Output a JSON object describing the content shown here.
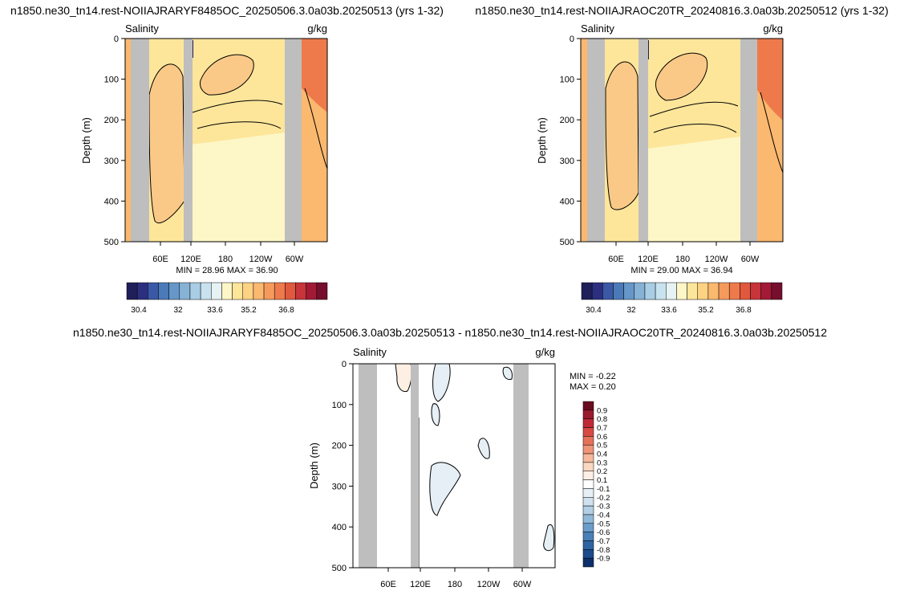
{
  "panels": [
    {
      "title": "n1850.ne30_tn14.rest-NOIIAJRARYF8485OC_20250506.3.0a03b.20250513 (yrs 1-32)",
      "variable": "Salinity",
      "units": "g/kg",
      "ylabel": "Depth (m)",
      "stats": "MIN =  28.96  MAX =  36.90"
    },
    {
      "title": "n1850.ne30_tn14.rest-NOIIAJRAOC20TR_20240816.3.0a03b.20250512 (yrs 1-32)",
      "variable": "Salinity",
      "units": "g/kg",
      "ylabel": "Depth (m)",
      "stats": "MIN =  29.00  MAX =  36.94"
    },
    {
      "title": "n1850.ne30_tn14.rest-NOIIAJRARYF8485OC_20250506.3.0a03b.20250513 - n1850.ne30_tn14.rest-NOIIAJRAOC20TR_20240816.3.0a03b.20250512",
      "variable": "Salinity",
      "units": "g/kg",
      "ylabel": "Depth (m)",
      "stats_min": "MIN =  -0.22",
      "stats_max": "MAX =   0.20"
    }
  ],
  "chart_data": [
    {
      "type": "heatmap",
      "title": "n1850.ne30_tn14.rest-NOIIAJRARYF8485OC_20250506.3.0a03b.20250513 (yrs 1-32)",
      "ylabel": "Depth (m)",
      "ylim": [
        500,
        0
      ],
      "yticks": [
        0,
        100,
        200,
        300,
        400,
        500
      ],
      "xticks": [
        "60E",
        "120E",
        "180",
        "120W",
        "60W"
      ],
      "colorbar_ticks": [
        "30.4",
        "32",
        "33.6",
        "35.2",
        "36.8"
      ],
      "min": 28.96,
      "max": 36.9
    },
    {
      "type": "heatmap",
      "title": "n1850.ne30_tn14.rest-NOIIAJRAOC20TR_20240816.3.0a03b.20250512 (yrs 1-32)",
      "ylabel": "Depth (m)",
      "ylim": [
        500,
        0
      ],
      "yticks": [
        0,
        100,
        200,
        300,
        400,
        500
      ],
      "xticks": [
        "60E",
        "120E",
        "180",
        "120W",
        "60W"
      ],
      "colorbar_ticks": [
        "30.4",
        "32",
        "33.6",
        "35.2",
        "36.8"
      ],
      "min": 29.0,
      "max": 36.94
    },
    {
      "type": "heatmap",
      "title": "n1850.ne30_tn14.rest-NOIIAJRARYF8485OC_20250506.3.0a03b.20250513 - n1850.ne30_tn14.rest-NOIIAJRAOC20TR_20240816.3.0a03b.20250512",
      "ylabel": "Depth (m)",
      "ylim": [
        500,
        0
      ],
      "yticks": [
        0,
        100,
        200,
        300,
        400,
        500
      ],
      "xticks": [
        "60E",
        "120E",
        "180",
        "120W",
        "60W"
      ],
      "colorbar_ticks": [
        "0.9",
        "0.8",
        "0.7",
        "0.6",
        "0.5",
        "0.4",
        "0.3",
        "0.2",
        "0.1",
        "-0.1",
        "-0.2",
        "-0.3",
        "-0.4",
        "-0.5",
        "-0.6",
        "-0.7",
        "-0.8",
        "-0.9"
      ],
      "min": -0.22,
      "max": 0.2
    }
  ],
  "colors": {
    "land_mask": "#bebebe",
    "abs_scale": [
      "#1f1f5a",
      "#2c2f80",
      "#3a58a6",
      "#4a7ab8",
      "#6697c8",
      "#86b2d6",
      "#a8cde4",
      "#c8e3ef",
      "#e6f2f4",
      "#fdf6c6",
      "#fde69a",
      "#fdd283",
      "#fbb86f",
      "#f69a5c",
      "#ee7a4b",
      "#e0583d",
      "#c7343a",
      "#a21a36",
      "#760e2e"
    ],
    "diff_scale": [
      "#6b0c20",
      "#9a1a2e",
      "#bf2a36",
      "#d74a44",
      "#e67158",
      "#f09478",
      "#f6b89b",
      "#fad7c1",
      "#fdefe3",
      "#ffffff",
      "#e6eff6",
      "#cfe0ee",
      "#b3cfe4",
      "#90b8d8",
      "#6a9dca",
      "#4a80b8",
      "#2f64a3",
      "#1d4a8c",
      "#0d2f6a"
    ]
  }
}
